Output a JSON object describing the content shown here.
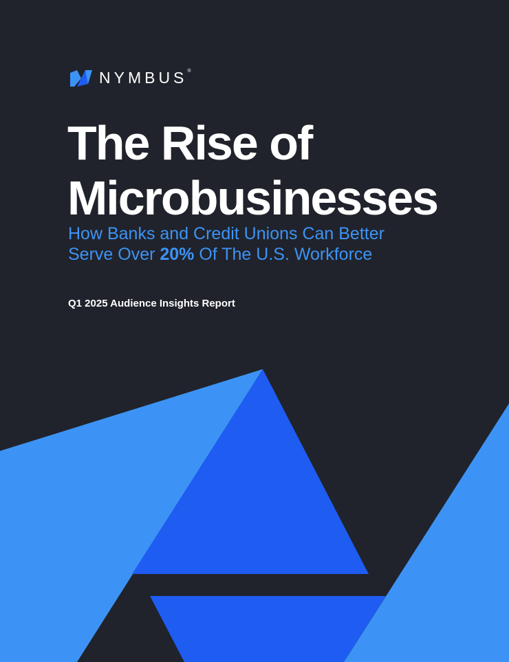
{
  "brand": {
    "name": "NYMBUS",
    "registered": "®"
  },
  "title": {
    "line1": "The Rise of",
    "line2": "Microbusinesses"
  },
  "subtitle": {
    "line1": "How Banks and Credit Unions Can Better",
    "line2_pre": "Serve Over ",
    "line2_bold": "20%",
    "line2_post": " Of The U.S. Workforce"
  },
  "report_label": "Q1 2025 Audience Insights Report",
  "colors": {
    "background": "#20232b",
    "light_blue": "#3d93f5",
    "royal_blue": "#1e5cf2",
    "text": "#ffffff"
  }
}
